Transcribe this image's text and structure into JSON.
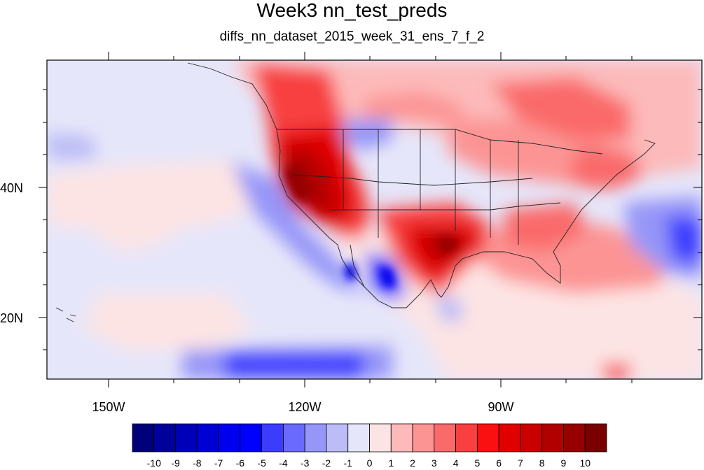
{
  "title": "Week3 nn_test_preds",
  "subtitle": "diffs_nn_dataset_2015_week_31_ens_7_f_2",
  "map": {
    "lon_range": [
      -160,
      -60
    ],
    "lat_range": [
      10,
      60
    ],
    "lon_ticks": [
      {
        "value": -150,
        "label": "150W"
      },
      {
        "value": -120,
        "label": "120W"
      },
      {
        "value": -90,
        "label": "90W"
      }
    ],
    "lat_ticks": [
      {
        "value": 40,
        "label": "40N"
      },
      {
        "value": 20,
        "label": "20N"
      }
    ]
  },
  "colorbar": {
    "colors": [
      "#00007a",
      "#00009a",
      "#0000b8",
      "#0000d4",
      "#0000ee",
      "#0000ff",
      "#3c3cff",
      "#6a6afe",
      "#9696f8",
      "#bcbcf6",
      "#e6e6fa",
      "#fde4e4",
      "#fdbaba",
      "#fc9494",
      "#fa6a6a",
      "#f84040",
      "#fa1010",
      "#e00000",
      "#c80000",
      "#b00000",
      "#960000",
      "#7a0000"
    ],
    "labels": [
      "-10",
      "-9",
      "-8",
      "-7",
      "-6",
      "-5",
      "-4",
      "-3",
      "-2",
      "-1",
      "0",
      "1",
      "2",
      "3",
      "4",
      "5",
      "6",
      "7",
      "8",
      "9",
      "10"
    ]
  }
}
